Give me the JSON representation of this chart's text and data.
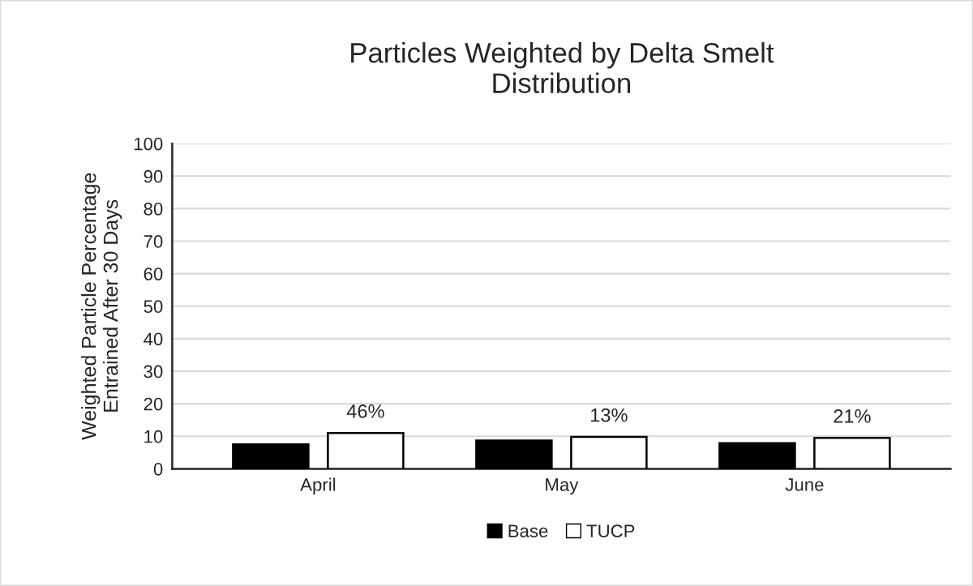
{
  "chart_data": {
    "type": "bar",
    "title": "Particles Weighted by Delta Smelt\nDistribution",
    "ylabel": "Weighted Particle Percentage\nEntrained After 30 Days",
    "categories": [
      "April",
      "May",
      "June"
    ],
    "series": [
      {
        "name": "Base",
        "color": "#000000",
        "values": [
          7.5,
          8.7,
          7.9
        ]
      },
      {
        "name": "TUCP",
        "color": "#ffffff",
        "values": [
          11.0,
          9.8,
          9.5
        ]
      }
    ],
    "annotations": [
      "46%",
      "13%",
      "21%"
    ],
    "ylim": [
      0,
      100
    ],
    "yticks": [
      0,
      10,
      20,
      30,
      40,
      50,
      60,
      70,
      80,
      90,
      100
    ],
    "grid": "y",
    "legend": "bottom"
  }
}
